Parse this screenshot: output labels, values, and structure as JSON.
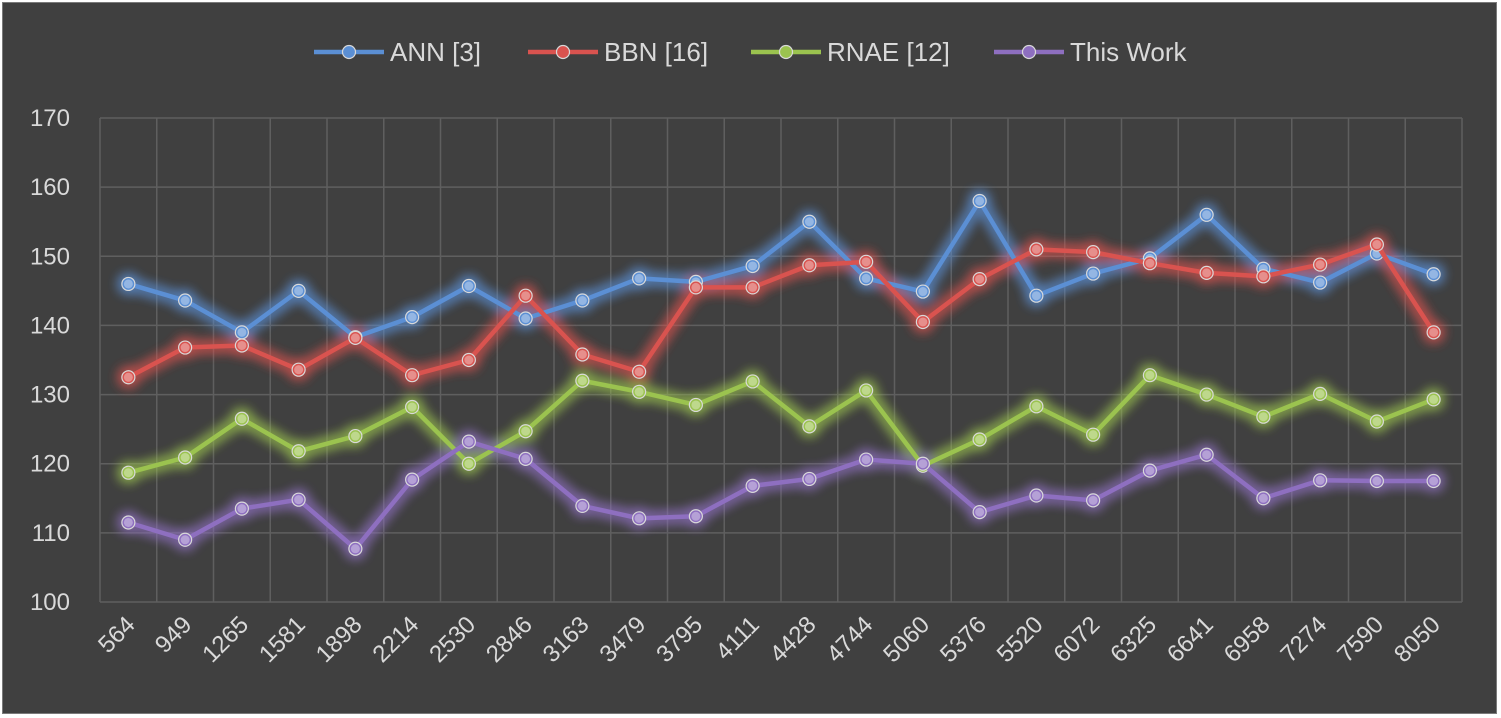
{
  "chart_data": {
    "type": "line",
    "title": "",
    "xlabel": "",
    "ylabel": "",
    "ylim": [
      100,
      170
    ],
    "ytick_step": 10,
    "grid": true,
    "legend_position": "top-center",
    "categories": [
      "564",
      "949",
      "1265",
      "1581",
      "1898",
      "2214",
      "2530",
      "2846",
      "3163",
      "3479",
      "3795",
      "4111",
      "4428",
      "4744",
      "5060",
      "5376",
      "5520",
      "6072",
      "6325",
      "6641",
      "6958",
      "7274",
      "7590",
      "8050"
    ],
    "series": [
      {
        "name": "ANN [3]",
        "color": "#5b8fd4",
        "values": [
          146,
          143.6,
          139,
          145,
          138.3,
          141.2,
          145.7,
          141,
          143.6,
          146.8,
          146.3,
          148.6,
          155,
          146.8,
          144.9,
          158,
          144.3,
          147.5,
          149.7,
          156,
          148.2,
          146.2,
          150.4,
          147.4
        ]
      },
      {
        "name": "BBN [16]",
        "color": "#d9534f",
        "values": [
          132.5,
          136.8,
          137.1,
          133.6,
          138.2,
          132.8,
          135,
          144.3,
          135.8,
          133.3,
          145.5,
          145.5,
          148.7,
          149.2,
          140.5,
          146.7,
          151,
          150.6,
          149,
          147.6,
          147.1,
          148.8,
          151.7,
          139
        ]
      },
      {
        "name": "RNAE [12]",
        "color": "#9bc34f",
        "values": [
          118.7,
          120.9,
          126.5,
          121.8,
          124,
          128.2,
          120,
          124.7,
          132,
          130.4,
          128.5,
          131.9,
          125.4,
          130.6,
          119.7,
          123.5,
          128.3,
          124.2,
          132.8,
          130,
          126.8,
          130.1,
          126.1,
          129.3
        ]
      },
      {
        "name": "This Work",
        "color": "#8e6fc0",
        "values": [
          111.5,
          109,
          113.5,
          114.8,
          107.7,
          117.7,
          123.2,
          120.7,
          113.9,
          112.1,
          112.4,
          116.8,
          117.8,
          120.6,
          120,
          113,
          115.4,
          114.7,
          119,
          121.3,
          115,
          117.6,
          117.5,
          117.5
        ]
      }
    ]
  }
}
